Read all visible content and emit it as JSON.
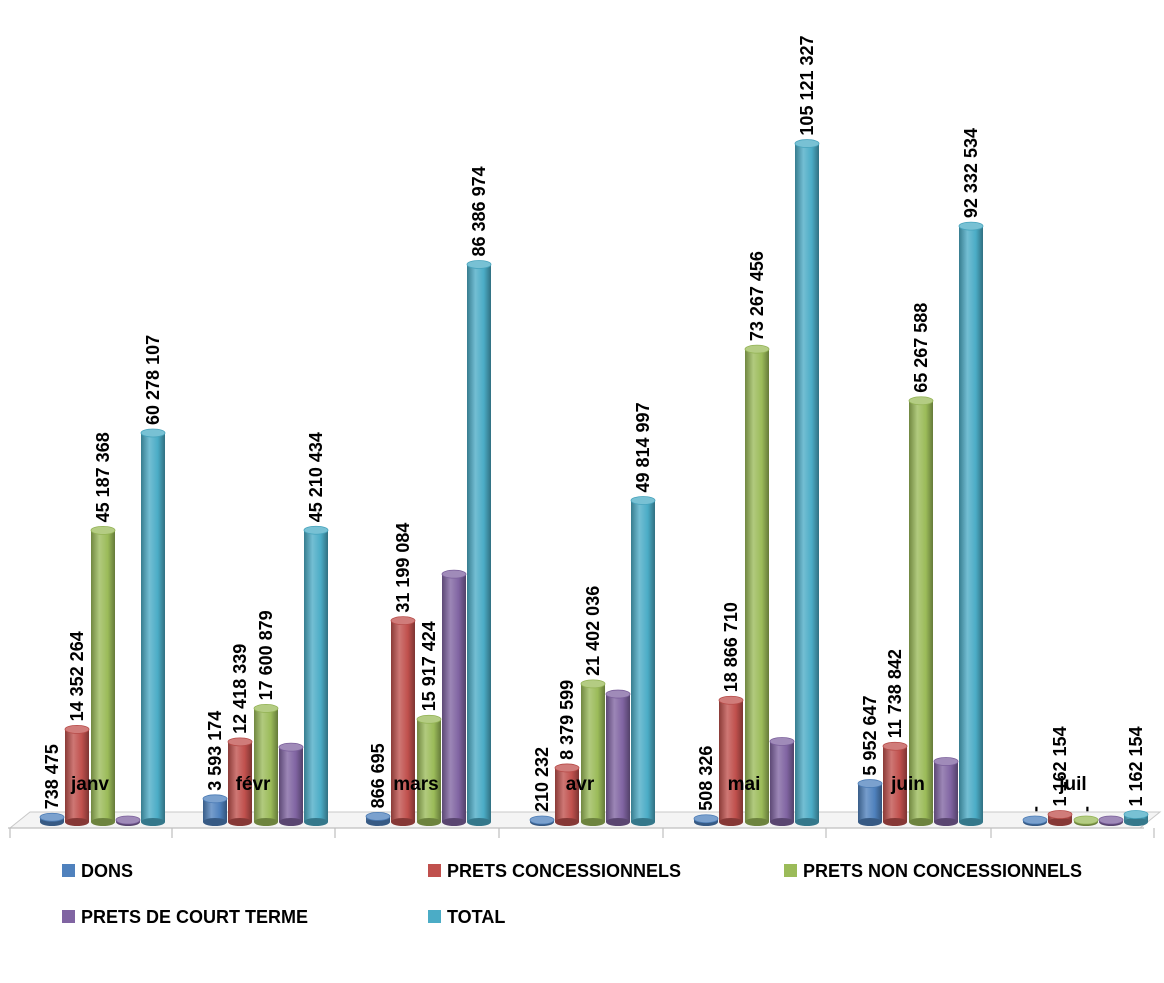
{
  "chart_data": {
    "type": "bar",
    "title": "",
    "xlabel": "",
    "ylabel": "",
    "ylim": [
      0,
      108000000
    ],
    "grid": false,
    "legend_position": "bottom",
    "categories": [
      "janv",
      "févr",
      "mars",
      "avr",
      "mai",
      "juin",
      "juil"
    ],
    "series": [
      {
        "name": "DONS",
        "color": "#4F81BD",
        "values": [
          738475,
          3593174,
          866695,
          210232,
          508326,
          5952647,
          0
        ],
        "labels": [
          "738 475",
          "3 593 174",
          "866 695",
          "210 232",
          "508 326",
          "5 952 647",
          "-"
        ]
      },
      {
        "name": "PRETS CONCESSIONNELS",
        "color": "#C0504D",
        "values": [
          14352264,
          12418339,
          31199084,
          8379599,
          18866710,
          11738842,
          1162154
        ],
        "labels": [
          "14 352 264",
          "12 418 339",
          "31 199 084",
          "8 379 599",
          "18 866 710",
          "11 738 842",
          "1 162 154"
        ]
      },
      {
        "name": "PRETS NON CONCESSIONNELS",
        "color": "#9BBB59",
        "values": [
          45187368,
          17600879,
          15917424,
          21402036,
          73267456,
          65267588,
          0
        ],
        "labels": [
          "45 187 368",
          "17 600 879",
          "15 917 424",
          "21 402 036",
          "73 267 456",
          "65 267 588",
          "-"
        ]
      },
      {
        "name": "PRETS DE COURT TERME",
        "color": "#8064A2",
        "values": [
          0,
          11598042,
          38403771,
          19823130,
          12478835,
          9373457,
          0
        ],
        "labels": [
          "",
          "",
          "",
          "",
          "",
          "",
          ""
        ]
      },
      {
        "name": "TOTAL",
        "color": "#4BACC6",
        "values": [
          60278107,
          45210434,
          86386974,
          49814997,
          105121327,
          92332534,
          1162154
        ],
        "labels": [
          "60 278 107",
          "45 210 434",
          "86 386 974",
          "49 814 997",
          "105 121 327",
          "92 332 534",
          "1 162 154"
        ]
      }
    ]
  }
}
